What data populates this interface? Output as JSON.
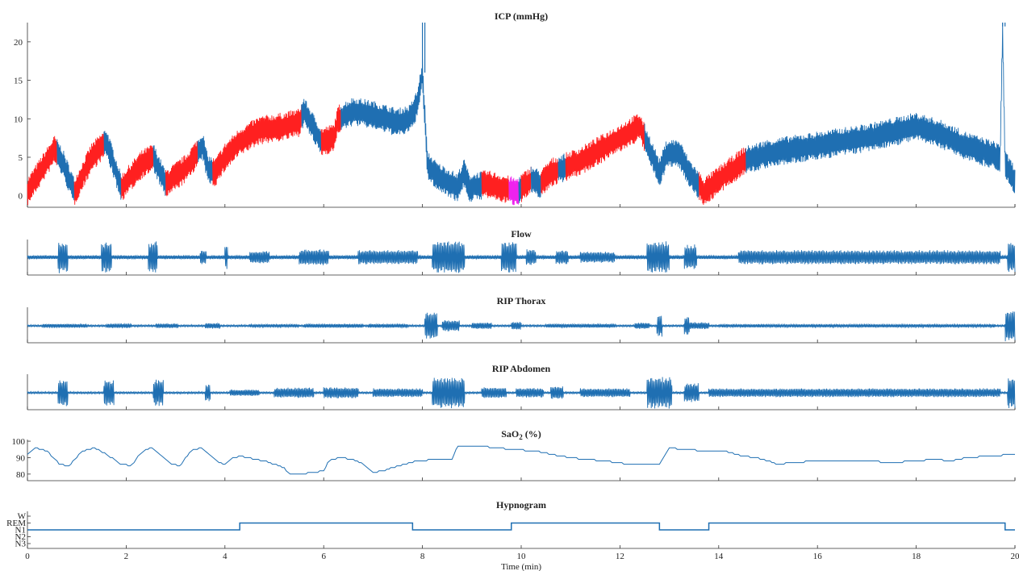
{
  "figure": {
    "xlabel": "Time (min)",
    "xticks": [
      0,
      2,
      4,
      6,
      8,
      10,
      12,
      14,
      16,
      18,
      20
    ],
    "xlim": [
      0,
      20
    ]
  },
  "colors": {
    "main": "#1f6fb2",
    "highlight": "#ff2020",
    "magenta": "#ee22ee",
    "axis": "#333333"
  },
  "chart_data": [
    {
      "id": "icp",
      "type": "line",
      "title": "ICP (mmHg)",
      "ylim": [
        -1.5,
        22.5
      ],
      "yticks": [
        0,
        5,
        10,
        15,
        20
      ],
      "amplitude": 1.6,
      "baseline": [
        [
          0,
          0.5
        ],
        [
          0.3,
          3.5
        ],
        [
          0.55,
          6
        ],
        [
          0.7,
          4.5
        ],
        [
          0.95,
          0.5
        ],
        [
          1.3,
          5
        ],
        [
          1.6,
          7
        ],
        [
          1.9,
          1
        ],
        [
          2.3,
          4
        ],
        [
          2.55,
          5
        ],
        [
          2.8,
          1.5
        ],
        [
          3.2,
          3.5
        ],
        [
          3.55,
          6.5
        ],
        [
          3.65,
          3.5
        ],
        [
          3.8,
          3
        ],
        [
          4.0,
          5
        ],
        [
          4.3,
          7
        ],
        [
          4.7,
          8.5
        ],
        [
          5.2,
          9
        ],
        [
          5.5,
          9.5
        ],
        [
          5.6,
          11
        ],
        [
          5.95,
          7
        ],
        [
          6.2,
          7.5
        ],
        [
          6.3,
          10
        ],
        [
          6.6,
          11
        ],
        [
          7.0,
          10.5
        ],
        [
          7.5,
          9.5
        ],
        [
          7.75,
          10
        ],
        [
          7.9,
          12
        ],
        [
          8.0,
          16
        ],
        [
          8.1,
          4
        ],
        [
          8.3,
          2.5
        ],
        [
          8.6,
          1.5
        ],
        [
          8.7,
          1
        ],
        [
          8.85,
          3
        ],
        [
          8.95,
          1
        ],
        [
          9.3,
          1.5
        ],
        [
          9.6,
          1
        ],
        [
          9.9,
          0.5
        ],
        [
          10.2,
          2
        ],
        [
          10.4,
          1.5
        ],
        [
          10.6,
          3
        ],
        [
          10.8,
          3.5
        ],
        [
          11.2,
          4.5
        ],
        [
          11.6,
          6
        ],
        [
          12.0,
          7.5
        ],
        [
          12.4,
          9
        ],
        [
          12.6,
          6
        ],
        [
          12.8,
          3
        ],
        [
          12.95,
          5.5
        ],
        [
          13.2,
          5.5
        ],
        [
          13.4,
          3
        ],
        [
          13.7,
          0.5
        ],
        [
          14.0,
          2
        ],
        [
          14.5,
          4.5
        ],
        [
          15.0,
          5.5
        ],
        [
          16.0,
          6.5
        ],
        [
          17.0,
          7.5
        ],
        [
          18.0,
          9
        ],
        [
          18.5,
          8
        ],
        [
          19.0,
          6.5
        ],
        [
          19.7,
          5
        ],
        [
          19.75,
          22
        ],
        [
          19.8,
          4
        ],
        [
          19.9,
          3
        ],
        [
          20,
          2
        ]
      ],
      "red_intervals": [
        [
          0,
          0.6
        ],
        [
          0.95,
          1.55
        ],
        [
          1.9,
          2.55
        ],
        [
          2.8,
          3.45
        ],
        [
          3.75,
          4.0
        ],
        [
          4.0,
          5.55
        ],
        [
          5.95,
          6.35
        ],
        [
          9.2,
          9.75
        ],
        [
          10.0,
          10.2
        ],
        [
          10.4,
          10.75
        ],
        [
          10.9,
          12.5
        ],
        [
          13.6,
          14.55
        ]
      ],
      "magenta_intervals": [
        [
          9.75,
          9.95
        ]
      ],
      "spikes": [
        [
          8.0,
          22.5
        ],
        [
          19.75,
          22.5
        ]
      ]
    },
    {
      "id": "flow",
      "type": "line",
      "title": "Flow",
      "bursts": [
        [
          0.62,
          0.2,
          1.0
        ],
        [
          1.5,
          0.2,
          1.0
        ],
        [
          2.45,
          0.18,
          1.0
        ],
        [
          3.5,
          0.12,
          0.45
        ],
        [
          4.0,
          0.05,
          0.8
        ],
        [
          4.5,
          0.4,
          0.4
        ],
        [
          5.5,
          0.6,
          0.5
        ],
        [
          6.7,
          1.2,
          0.45
        ],
        [
          8.2,
          0.65,
          1.0
        ],
        [
          9.6,
          0.3,
          1.0
        ],
        [
          10.1,
          0.2,
          0.5
        ],
        [
          10.7,
          0.25,
          0.45
        ],
        [
          11.2,
          0.7,
          0.35
        ],
        [
          12.55,
          0.45,
          1.0
        ],
        [
          13.3,
          0.25,
          0.8
        ],
        [
          14.4,
          5.3,
          0.45
        ],
        [
          19.85,
          0.2,
          1.0
        ]
      ],
      "noise": 0.12
    },
    {
      "id": "rip-thorax",
      "type": "line",
      "title": "RIP Thorax",
      "bursts": [
        [
          0.3,
          0.9,
          0.12
        ],
        [
          1.6,
          0.5,
          0.14
        ],
        [
          2.6,
          0.45,
          0.14
        ],
        [
          3.6,
          0.3,
          0.18
        ],
        [
          4.5,
          1.0,
          0.1
        ],
        [
          5.6,
          1.2,
          0.12
        ],
        [
          6.9,
          0.8,
          0.12
        ],
        [
          8.05,
          0.25,
          0.85
        ],
        [
          8.4,
          0.35,
          0.35
        ],
        [
          9.0,
          0.4,
          0.2
        ],
        [
          9.8,
          0.2,
          0.25
        ],
        [
          10.5,
          1.4,
          0.12
        ],
        [
          12.3,
          0.3,
          0.2
        ],
        [
          12.75,
          0.1,
          0.7
        ],
        [
          13.3,
          0.1,
          0.6
        ],
        [
          13.3,
          0.5,
          0.22
        ],
        [
          14.0,
          5.6,
          0.1
        ],
        [
          19.8,
          0.2,
          1.0
        ]
      ],
      "noise": 0.06
    },
    {
      "id": "rip-abdomen",
      "type": "line",
      "title": "RIP Abdomen",
      "bursts": [
        [
          0.62,
          0.2,
          0.85
        ],
        [
          1.55,
          0.2,
          0.85
        ],
        [
          2.55,
          0.2,
          0.85
        ],
        [
          3.6,
          0.1,
          0.55
        ],
        [
          4.1,
          0.6,
          0.2
        ],
        [
          5.0,
          0.8,
          0.32
        ],
        [
          6.0,
          0.7,
          0.35
        ],
        [
          7.0,
          1.0,
          0.28
        ],
        [
          8.2,
          0.65,
          1.0
        ],
        [
          9.2,
          0.5,
          0.35
        ],
        [
          9.9,
          0.55,
          0.3
        ],
        [
          10.6,
          0.25,
          0.4
        ],
        [
          11.2,
          1.0,
          0.28
        ],
        [
          12.55,
          0.5,
          1.0
        ],
        [
          13.3,
          0.3,
          0.6
        ],
        [
          13.8,
          5.9,
          0.28
        ],
        [
          19.85,
          0.2,
          1.0
        ]
      ],
      "noise": 0.06
    },
    {
      "id": "sao2",
      "type": "line",
      "title": "SaO2 (%)",
      "title_main": "SaO",
      "title_sub": "2",
      "title_tail": " (%)",
      "ylim": [
        76,
        101
      ],
      "yticks": [
        80,
        90,
        100
      ],
      "points": [
        [
          0,
          92
        ],
        [
          0.15,
          96
        ],
        [
          0.4,
          94
        ],
        [
          0.65,
          86
        ],
        [
          0.85,
          85
        ],
        [
          1.1,
          94
        ],
        [
          1.35,
          96
        ],
        [
          1.6,
          92
        ],
        [
          1.9,
          86
        ],
        [
          2.1,
          85
        ],
        [
          2.3,
          93
        ],
        [
          2.5,
          96
        ],
        [
          2.7,
          92
        ],
        [
          2.9,
          86
        ],
        [
          3.1,
          85
        ],
        [
          3.3,
          94
        ],
        [
          3.5,
          96
        ],
        [
          3.7,
          91
        ],
        [
          3.9,
          87
        ],
        [
          4.0,
          86
        ],
        [
          4.1,
          89
        ],
        [
          4.3,
          91
        ],
        [
          4.8,
          88
        ],
        [
          5.2,
          84
        ],
        [
          5.3,
          80
        ],
        [
          5.5,
          80
        ],
        [
          5.8,
          81
        ],
        [
          6.0,
          82
        ],
        [
          6.1,
          88
        ],
        [
          6.3,
          90
        ],
        [
          6.6,
          89
        ],
        [
          6.8,
          86
        ],
        [
          7.0,
          81
        ],
        [
          7.2,
          82
        ],
        [
          7.5,
          85
        ],
        [
          7.9,
          88
        ],
        [
          8.3,
          89
        ],
        [
          8.6,
          89
        ],
        [
          8.7,
          97
        ],
        [
          9.2,
          97
        ],
        [
          9.8,
          95
        ],
        [
          10.3,
          94
        ],
        [
          10.6,
          92
        ],
        [
          11.0,
          90
        ],
        [
          11.3,
          89
        ],
        [
          11.7,
          88
        ],
        [
          12.2,
          86
        ],
        [
          12.8,
          86
        ],
        [
          13.0,
          96
        ],
        [
          13.3,
          95
        ],
        [
          13.8,
          94
        ],
        [
          14.1,
          94
        ],
        [
          14.5,
          91
        ],
        [
          14.9,
          89
        ],
        [
          15.2,
          86
        ],
        [
          15.5,
          87
        ],
        [
          16.0,
          88
        ],
        [
          17.0,
          88
        ],
        [
          17.5,
          87
        ],
        [
          18.0,
          88
        ],
        [
          18.4,
          89
        ],
        [
          18.7,
          88
        ],
        [
          19.0,
          90
        ],
        [
          19.5,
          91
        ],
        [
          20,
          92
        ]
      ]
    },
    {
      "id": "hypnogram",
      "type": "line",
      "title": "Hypnogram",
      "stages": [
        "W",
        "REM",
        "N1",
        "N2",
        "N3"
      ],
      "steps": [
        [
          0,
          "N1"
        ],
        [
          4.3,
          "REM"
        ],
        [
          7.8,
          "N1"
        ],
        [
          9.8,
          "REM"
        ],
        [
          12.8,
          "N1"
        ],
        [
          13.8,
          "REM"
        ],
        [
          19.8,
          "N1"
        ],
        [
          20,
          "N1"
        ]
      ]
    }
  ]
}
